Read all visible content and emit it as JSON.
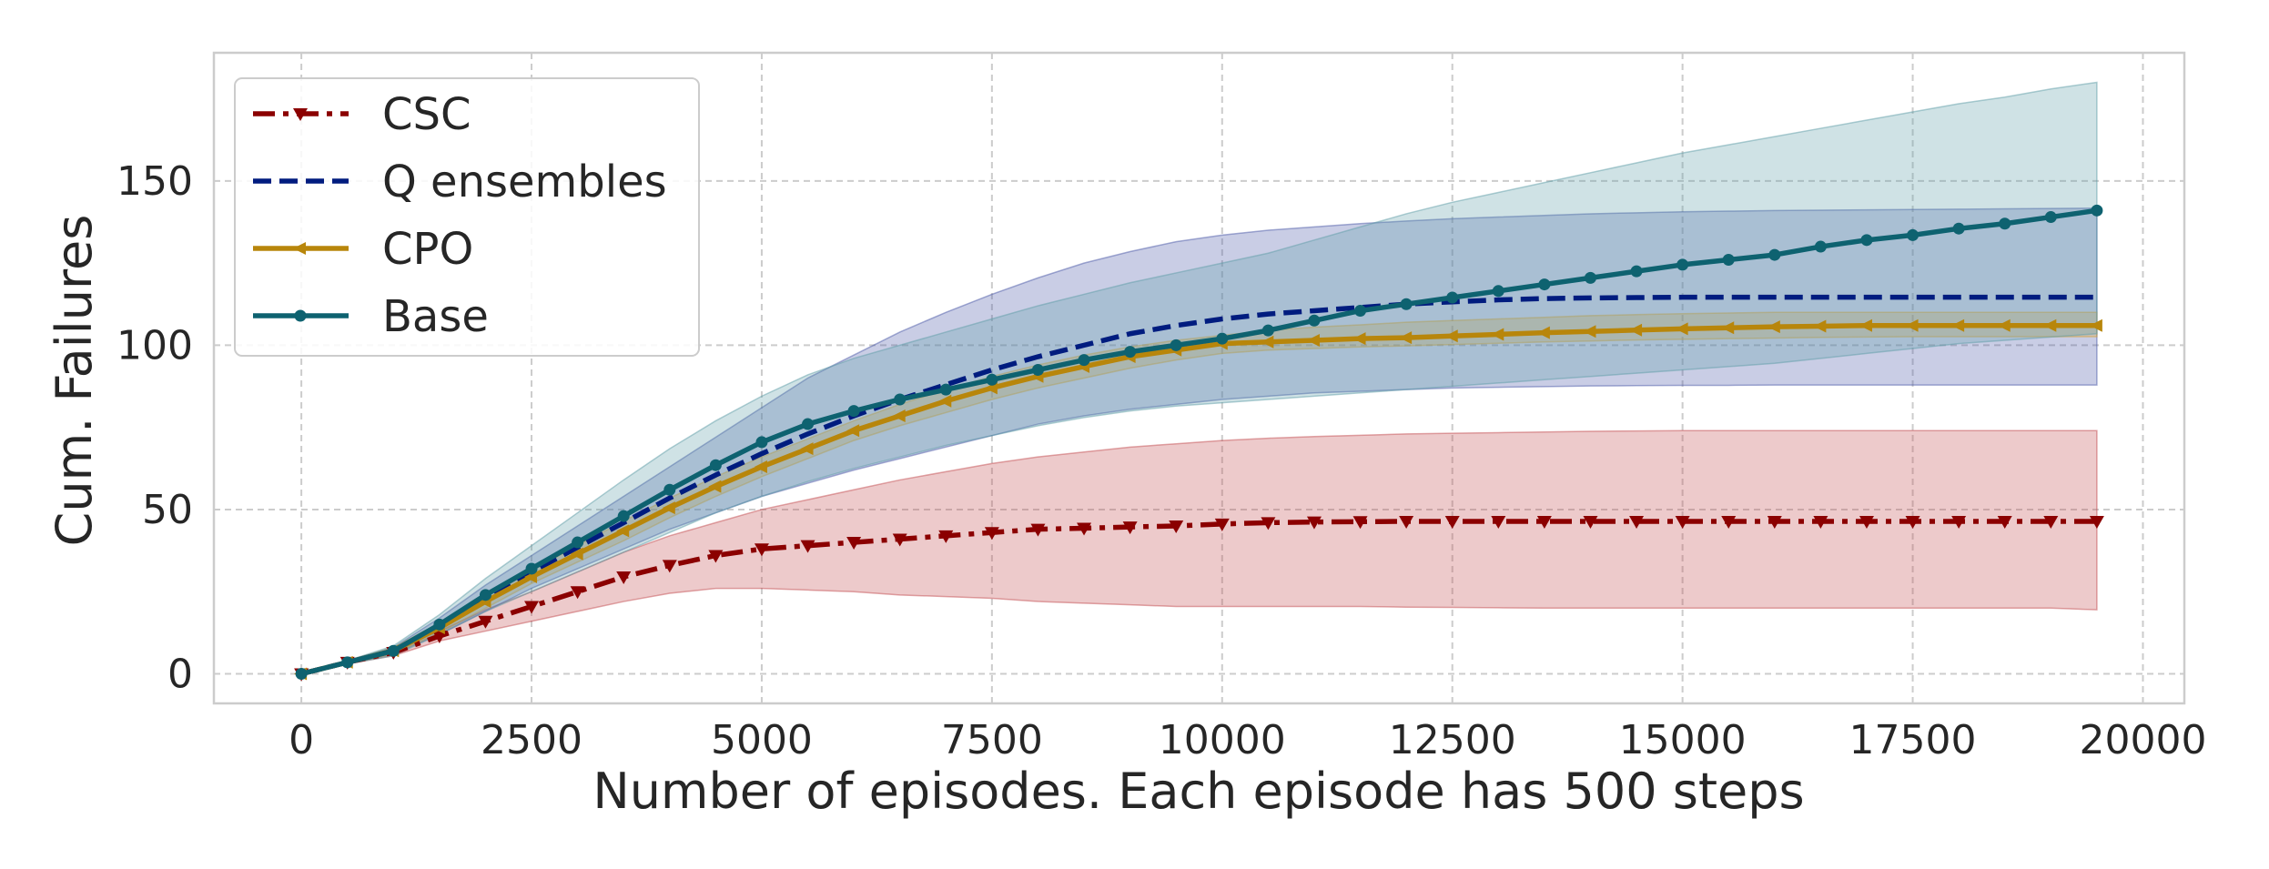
{
  "chart_data": {
    "type": "line",
    "title": "",
    "xlabel": "Number of episodes. Each episode has 500 steps",
    "ylabel": "Cum. Failures",
    "xlim": [
      -950,
      20450
    ],
    "ylim": [
      -9,
      189
    ],
    "xticks": [
      0,
      2500,
      5000,
      7500,
      10000,
      12500,
      15000,
      17500,
      20000
    ],
    "yticks": [
      0,
      50,
      100,
      150
    ],
    "xtick_labels": [
      "0",
      "2500",
      "5000",
      "7500",
      "10000",
      "12500",
      "15000",
      "17500",
      "20000"
    ],
    "ytick_labels": [
      "0",
      "50",
      "100",
      "150"
    ],
    "grid": true,
    "legend_position": "top-left",
    "x": [
      0,
      500,
      1000,
      1500,
      2000,
      2500,
      3000,
      3500,
      4000,
      4500,
      5000,
      5500,
      6000,
      6500,
      7000,
      7500,
      8000,
      8500,
      9000,
      9500,
      10000,
      10500,
      11000,
      11500,
      12000,
      12500,
      13000,
      13500,
      14000,
      14500,
      15000,
      15500,
      16000,
      16500,
      17000,
      17500,
      18000,
      18500,
      19000,
      19500
    ],
    "series": [
      {
        "name": "CSC",
        "color": "#8b0000",
        "band_color": "#c44e52",
        "line_style": "dash-dot",
        "marker": "triangle-down",
        "values": [
          0,
          3.5,
          6.5,
          11.5,
          16,
          20.5,
          25,
          29.5,
          33,
          36,
          38,
          39,
          40,
          41,
          42,
          43,
          44,
          44.3,
          44.7,
          45,
          45.6,
          46,
          46.2,
          46.3,
          46.4,
          46.4,
          46.4,
          46.4,
          46.4,
          46.4,
          46.4,
          46.4,
          46.4,
          46.4,
          46.4,
          46.4,
          46.4,
          46.4,
          46.4,
          46.4
        ],
        "upper": [
          0,
          4,
          7.5,
          13,
          19.5,
          25,
          31,
          37,
          42,
          46,
          50,
          53,
          56,
          59,
          61.5,
          64,
          66,
          67.5,
          69,
          70,
          71,
          71.7,
          72.2,
          72.6,
          73,
          73.2,
          73.4,
          73.6,
          73.8,
          73.9,
          74,
          74,
          74,
          74,
          74,
          74,
          74,
          74,
          74,
          74
        ],
        "lower": [
          0,
          3,
          5.5,
          10,
          13,
          16,
          19,
          22,
          24.5,
          26,
          26,
          25.5,
          25,
          24,
          23.5,
          23,
          22,
          21.5,
          21,
          20.5,
          20.5,
          20.5,
          20.5,
          20.5,
          20.3,
          20.2,
          20.1,
          20,
          20,
          20,
          20,
          20,
          20,
          20,
          20,
          20,
          20,
          20,
          20,
          19.5
        ]
      },
      {
        "name": "Q ensembles",
        "color": "#001c7f",
        "band_color": "#4c59a8",
        "line_style": "dashed",
        "marker": "none",
        "values": [
          0,
          3.5,
          7,
          14.5,
          23,
          31,
          38.5,
          46,
          53.5,
          60.5,
          67,
          73,
          78.5,
          83.5,
          88,
          92.5,
          96.5,
          100,
          103.5,
          106,
          108,
          109.5,
          110.5,
          111.5,
          112.5,
          113.2,
          113.8,
          114.2,
          114.4,
          114.5,
          114.6,
          114.6,
          114.6,
          114.6,
          114.6,
          114.6,
          114.6,
          114.6,
          114.6,
          114.6
        ],
        "upper": [
          0,
          4,
          8,
          17,
          27,
          36,
          45,
          54,
          63,
          72,
          81,
          90,
          97,
          104,
          110,
          115.5,
          120.5,
          125,
          128.5,
          131.5,
          133.5,
          135,
          136,
          137,
          137.8,
          138.5,
          139,
          139.5,
          140,
          140.3,
          140.6,
          140.8,
          141,
          141.1,
          141.2,
          141.3,
          141.4,
          141.5,
          141.6,
          141.7
        ],
        "lower": [
          0,
          3,
          6,
          12,
          19,
          26,
          32,
          38,
          44,
          49,
          54,
          58,
          62,
          65.5,
          69,
          72.5,
          76,
          78.5,
          80.5,
          82,
          83.5,
          84.5,
          85.5,
          86,
          86.5,
          87,
          87.2,
          87.4,
          87.6,
          87.7,
          87.8,
          87.8,
          87.9,
          87.9,
          87.9,
          87.9,
          87.9,
          87.9,
          87.9,
          87.9
        ]
      },
      {
        "name": "CPO",
        "color": "#b8860b",
        "band_color": "#d4a23a",
        "line_style": "solid",
        "marker": "triangle-left",
        "values": [
          0,
          3.5,
          7,
          14,
          22,
          29.5,
          36.5,
          43.5,
          50.5,
          57,
          63,
          68.5,
          74,
          78.5,
          83,
          87,
          90.5,
          93.5,
          96.5,
          98.5,
          100.5,
          101,
          101.5,
          102,
          102.3,
          102.8,
          103.3,
          103.8,
          104.2,
          104.6,
          105,
          105.3,
          105.6,
          105.8,
          106,
          106,
          106,
          106,
          106,
          106
        ],
        "upper": [
          0,
          4,
          8,
          15.5,
          24,
          31.5,
          39,
          46.5,
          53.5,
          60,
          66,
          71.5,
          77,
          82,
          86.5,
          90.5,
          94,
          97,
          99.5,
          101.5,
          103,
          104.5,
          105.5,
          106.2,
          107,
          107.5,
          108,
          108.5,
          109,
          109.3,
          109.6,
          109.8,
          110,
          110,
          110,
          110,
          110,
          110,
          110,
          110
        ],
        "lower": [
          0,
          3,
          6,
          12.5,
          20,
          27.5,
          34,
          40.5,
          47.5,
          54,
          60,
          65.5,
          71,
          75.5,
          79.5,
          83.5,
          87,
          90,
          93,
          95.5,
          97.5,
          98.5,
          99,
          99.5,
          99.8,
          100.2,
          100.6,
          101,
          101.3,
          101.6,
          101.8,
          102,
          102.2,
          102.4,
          102.5,
          102.6,
          102.6,
          102.6,
          102.6,
          102.6
        ]
      },
      {
        "name": "Base",
        "color": "#0e6270",
        "band_color": "#5f9ea8",
        "line_style": "solid",
        "marker": "circle",
        "values": [
          0,
          3.5,
          7,
          15,
          24,
          32,
          40,
          48,
          56,
          63.5,
          70.5,
          76,
          80,
          83.5,
          86.5,
          89.5,
          92.5,
          95.5,
          98,
          100,
          102,
          104.5,
          107.5,
          110.5,
          112.5,
          114.5,
          116.5,
          118.5,
          120.5,
          122.5,
          124.5,
          126,
          127.5,
          130,
          132,
          133.5,
          135.5,
          137,
          139,
          141
        ],
        "upper": [
          0,
          4,
          8.5,
          18,
          29,
          39,
          49,
          59,
          68.5,
          77,
          84.5,
          91,
          96,
          100,
          104,
          108,
          112,
          115.5,
          119,
          122,
          125,
          128,
          132,
          136,
          140,
          143.5,
          146.5,
          149.5,
          152.5,
          155.5,
          158.5,
          161,
          163.5,
          166,
          168.5,
          171,
          173.5,
          175.5,
          178,
          180
        ],
        "lower": [
          0,
          3,
          5.5,
          12,
          19,
          25,
          31,
          37,
          43,
          49,
          54,
          58.5,
          62.5,
          66,
          69.5,
          72.5,
          75.5,
          78,
          80,
          81.5,
          82.5,
          83.5,
          84.5,
          85.5,
          86.5,
          87.5,
          88.5,
          89.5,
          90.5,
          91.5,
          92.5,
          93.5,
          94.5,
          96,
          97.5,
          99,
          100.5,
          101.5,
          102.5,
          103.5
        ]
      }
    ]
  }
}
